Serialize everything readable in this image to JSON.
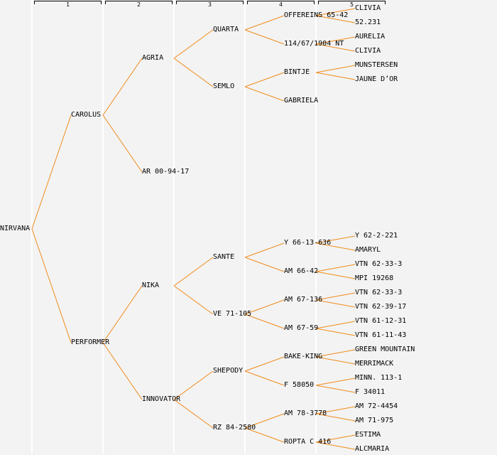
{
  "header": {
    "generations": [
      "1",
      "2",
      "3",
      "4",
      "5"
    ]
  },
  "colors": {
    "link": "#f08c1c",
    "background": "#f3f3f3",
    "divider": "#ffffff"
  },
  "tree": {
    "name": "NIRVANA",
    "children": [
      {
        "name": "CAROLUS",
        "children": [
          {
            "name": "AGRIA",
            "children": [
              {
                "name": "QUARTA",
                "children": [
                  {
                    "name": "OFFEREINS 65-42",
                    "children": [
                      {
                        "name": "CLIVIA"
                      },
                      {
                        "name": "52.231"
                      }
                    ]
                  },
                  {
                    "name": "114/67/1904 NT",
                    "children": [
                      {
                        "name": "AURELIA"
                      },
                      {
                        "name": "CLIVIA"
                      }
                    ]
                  }
                ]
              },
              {
                "name": "SEMLO",
                "children": [
                  {
                    "name": "BINTJE",
                    "children": [
                      {
                        "name": "MUNSTERSEN"
                      },
                      {
                        "name": "JAUNE D’OR"
                      }
                    ]
                  },
                  {
                    "name": "GABRIELA"
                  }
                ]
              }
            ]
          },
          {
            "name": "AR 00-94-17"
          }
        ]
      },
      {
        "name": "PERFORMER",
        "children": [
          {
            "name": "NIKA",
            "children": [
              {
                "name": "SANTE",
                "children": [
                  {
                    "name": "Y 66-13-636",
                    "children": [
                      {
                        "name": "Y 62-2-221"
                      },
                      {
                        "name": "AMARYL"
                      }
                    ]
                  },
                  {
                    "name": "AM 66-42",
                    "children": [
                      {
                        "name": "VTN 62-33-3"
                      },
                      {
                        "name": "MPI 19268"
                      }
                    ]
                  }
                ]
              },
              {
                "name": "VE 71-105",
                "children": [
                  {
                    "name": "AM 67-136",
                    "children": [
                      {
                        "name": "VTN 62-33-3"
                      },
                      {
                        "name": "VTN 62-39-17"
                      }
                    ]
                  },
                  {
                    "name": "AM 67-59",
                    "children": [
                      {
                        "name": "VTN 61-12-31"
                      },
                      {
                        "name": "VTN 61-11-43"
                      }
                    ]
                  }
                ]
              }
            ]
          },
          {
            "name": "INNOVATOR",
            "children": [
              {
                "name": "SHEPODY",
                "children": [
                  {
                    "name": "BAKE-KING",
                    "children": [
                      {
                        "name": "GREEN MOUNTAIN"
                      },
                      {
                        "name": "MERRIMACK"
                      }
                    ]
                  },
                  {
                    "name": "F 58050",
                    "children": [
                      {
                        "name": "MINN. 113-1"
                      },
                      {
                        "name": "F 34011"
                      }
                    ]
                  }
                ]
              },
              {
                "name": "RZ 84-2580",
                "children": [
                  {
                    "name": "AM 78-3778",
                    "children": [
                      {
                        "name": "AM 72-4454"
                      },
                      {
                        "name": "AM 71-975"
                      }
                    ]
                  },
                  {
                    "name": "ROPTA C 416",
                    "children": [
                      {
                        "name": "ESTIMA"
                      },
                      {
                        "name": "ALCMARIA"
                      }
                    ]
                  }
                ]
              }
            ]
          }
        ]
      }
    ]
  }
}
